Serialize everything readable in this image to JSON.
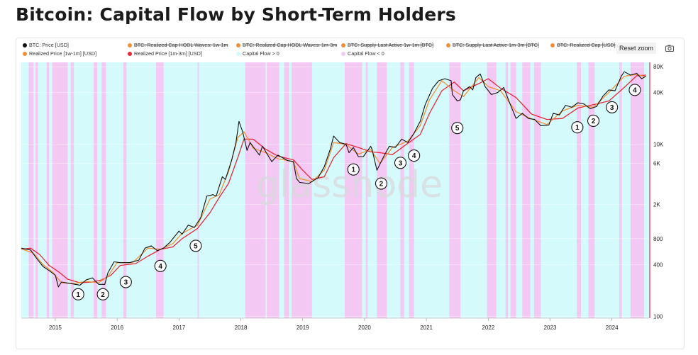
{
  "title": "Bitcoin: Capital Flow by Short-Term Holders",
  "toolbar": {
    "reset_label": "Reset zoom",
    "camera_icon": "camera-icon"
  },
  "watermark": "glassnode",
  "legend": [
    {
      "label": "BTC: Price [USD]",
      "color": "#111111",
      "active": true
    },
    {
      "label": "BTC: Realized Cap HODL Waves: 1w-1m",
      "color": "#f0913a",
      "active": false
    },
    {
      "label": "BTC: Realized Cap HODL Waves: 1m-3m",
      "color": "#f0913a",
      "active": false
    },
    {
      "label": "BTC: Supply Last Active 1w-1m [BTC]",
      "color": "#f0913a",
      "active": false
    },
    {
      "label": "BTC: Supply Last Active 1m-3m [BTC]",
      "color": "#f0913a",
      "active": false
    },
    {
      "label": "BTC: Realized Cap [USD]",
      "color": "#f0913a",
      "active": false
    },
    {
      "label": "Realized Price [1w-1m] [USD]",
      "color": "#f0913a",
      "active": true
    },
    {
      "label": "Realized Price [1m-3m] [USD]",
      "color": "#e8273a",
      "active": true
    },
    {
      "label": "Capital Flow > 0",
      "color": "#d5fafc",
      "active": true
    },
    {
      "label": "Capital Flow < 0",
      "color": "#f3c8f3",
      "active": true
    }
  ],
  "chart_data": {
    "type": "line",
    "title": "Bitcoin: Capital Flow by Short-Term Holders",
    "x_axis": {
      "ticks": [
        "2015",
        "2016",
        "2017",
        "2018",
        "2019",
        "2020",
        "2021",
        "2022",
        "2023",
        "2024"
      ],
      "range": [
        2014.45,
        2024.6
      ]
    },
    "y_axis": {
      "scale": "log",
      "ticks": [
        {
          "value": 100,
          "label": "100"
        },
        {
          "value": 400,
          "label": "400"
        },
        {
          "value": 800,
          "label": "800"
        },
        {
          "value": 2000,
          "label": "2K"
        },
        {
          "value": 6000,
          "label": "6K"
        },
        {
          "value": 10000,
          "label": "10K"
        },
        {
          "value": 40000,
          "label": "40K"
        },
        {
          "value": 80000,
          "label": "80K"
        }
      ],
      "range": [
        95,
        90000
      ]
    },
    "grid": true,
    "series": [
      {
        "name": "BTC: Price [USD]",
        "color": "#111111",
        "points": [
          [
            2014.45,
            620
          ],
          [
            2014.6,
            590
          ],
          [
            2014.7,
            470
          ],
          [
            2014.8,
            380
          ],
          [
            2014.9,
            340
          ],
          [
            2015.0,
            300
          ],
          [
            2015.05,
            220
          ],
          [
            2015.1,
            250
          ],
          [
            2015.25,
            240
          ],
          [
            2015.4,
            230
          ],
          [
            2015.5,
            265
          ],
          [
            2015.6,
            280
          ],
          [
            2015.7,
            235
          ],
          [
            2015.8,
            235
          ],
          [
            2015.85,
            320
          ],
          [
            2015.95,
            430
          ],
          [
            2016.05,
            420
          ],
          [
            2016.2,
            420
          ],
          [
            2016.35,
            450
          ],
          [
            2016.45,
            620
          ],
          [
            2016.55,
            660
          ],
          [
            2016.65,
            580
          ],
          [
            2016.75,
            620
          ],
          [
            2016.85,
            720
          ],
          [
            2017.0,
            980
          ],
          [
            2017.05,
            900
          ],
          [
            2017.15,
            1150
          ],
          [
            2017.25,
            1080
          ],
          [
            2017.35,
            1400
          ],
          [
            2017.45,
            2500
          ],
          [
            2017.55,
            2600
          ],
          [
            2017.6,
            2500
          ],
          [
            2017.7,
            4200
          ],
          [
            2017.75,
            3900
          ],
          [
            2017.85,
            6500
          ],
          [
            2017.92,
            10500
          ],
          [
            2017.97,
            18500
          ],
          [
            2018.03,
            14000
          ],
          [
            2018.1,
            8500
          ],
          [
            2018.15,
            10500
          ],
          [
            2018.3,
            7500
          ],
          [
            2018.35,
            9500
          ],
          [
            2018.5,
            6300
          ],
          [
            2018.6,
            7500
          ],
          [
            2018.75,
            6500
          ],
          [
            2018.85,
            6300
          ],
          [
            2018.9,
            4000
          ],
          [
            2018.95,
            3600
          ],
          [
            2019.1,
            3500
          ],
          [
            2019.25,
            4100
          ],
          [
            2019.35,
            5500
          ],
          [
            2019.45,
            9000
          ],
          [
            2019.5,
            12500
          ],
          [
            2019.6,
            10500
          ],
          [
            2019.7,
            10000
          ],
          [
            2019.75,
            8000
          ],
          [
            2019.82,
            9200
          ],
          [
            2019.9,
            7200
          ],
          [
            2019.98,
            7200
          ],
          [
            2020.1,
            9500
          ],
          [
            2020.12,
            8800
          ],
          [
            2020.2,
            5000
          ],
          [
            2020.3,
            7000
          ],
          [
            2020.4,
            9500
          ],
          [
            2020.5,
            9200
          ],
          [
            2020.6,
            11500
          ],
          [
            2020.7,
            10500
          ],
          [
            2020.8,
            13500
          ],
          [
            2020.9,
            18500
          ],
          [
            2020.98,
            29000
          ],
          [
            2021.1,
            45000
          ],
          [
            2021.2,
            55000
          ],
          [
            2021.3,
            58000
          ],
          [
            2021.4,
            55000
          ],
          [
            2021.42,
            38000
          ],
          [
            2021.5,
            32000
          ],
          [
            2021.55,
            33000
          ],
          [
            2021.6,
            42000
          ],
          [
            2021.7,
            47000
          ],
          [
            2021.75,
            43000
          ],
          [
            2021.8,
            60000
          ],
          [
            2021.87,
            66000
          ],
          [
            2021.95,
            47000
          ],
          [
            2022.05,
            38000
          ],
          [
            2022.15,
            40000
          ],
          [
            2022.25,
            46000
          ],
          [
            2022.35,
            30000
          ],
          [
            2022.45,
            20000
          ],
          [
            2022.55,
            23000
          ],
          [
            2022.65,
            20000
          ],
          [
            2022.75,
            19500
          ],
          [
            2022.85,
            16500
          ],
          [
            2022.98,
            16800
          ],
          [
            2023.05,
            23000
          ],
          [
            2023.15,
            22000
          ],
          [
            2023.25,
            28500
          ],
          [
            2023.35,
            27000
          ],
          [
            2023.45,
            30500
          ],
          [
            2023.55,
            29500
          ],
          [
            2023.65,
            26000
          ],
          [
            2023.75,
            27500
          ],
          [
            2023.85,
            36000
          ],
          [
            2023.95,
            43000
          ],
          [
            2024.05,
            42000
          ],
          [
            2024.15,
            62000
          ],
          [
            2024.2,
            70000
          ],
          [
            2024.3,
            64000
          ],
          [
            2024.4,
            67000
          ],
          [
            2024.48,
            58000
          ],
          [
            2024.55,
            62000
          ]
        ]
      },
      {
        "name": "Realized Price [1w-1m] [USD]",
        "color": "#f0913a",
        "points": [
          [
            2014.45,
            610
          ],
          [
            2014.65,
            540
          ],
          [
            2014.8,
            400
          ],
          [
            2014.95,
            330
          ],
          [
            2015.1,
            245
          ],
          [
            2015.3,
            240
          ],
          [
            2015.5,
            255
          ],
          [
            2015.7,
            245
          ],
          [
            2015.85,
            290
          ],
          [
            2016.0,
            420
          ],
          [
            2016.25,
            420
          ],
          [
            2016.5,
            620
          ],
          [
            2016.7,
            600
          ],
          [
            2016.9,
            700
          ],
          [
            2017.05,
            920
          ],
          [
            2017.3,
            1150
          ],
          [
            2017.5,
            2300
          ],
          [
            2017.65,
            2600
          ],
          [
            2017.8,
            4800
          ],
          [
            2017.95,
            12000
          ],
          [
            2018.05,
            14000
          ],
          [
            2018.2,
            9000
          ],
          [
            2018.4,
            8000
          ],
          [
            2018.6,
            6800
          ],
          [
            2018.85,
            6300
          ],
          [
            2018.95,
            4000
          ],
          [
            2019.15,
            3700
          ],
          [
            2019.35,
            5000
          ],
          [
            2019.5,
            10500
          ],
          [
            2019.7,
            10000
          ],
          [
            2019.9,
            7700
          ],
          [
            2020.1,
            8700
          ],
          [
            2020.25,
            6000
          ],
          [
            2020.45,
            9200
          ],
          [
            2020.7,
            10900
          ],
          [
            2020.9,
            16500
          ],
          [
            2021.05,
            33000
          ],
          [
            2021.25,
            55000
          ],
          [
            2021.45,
            42000
          ],
          [
            2021.6,
            36000
          ],
          [
            2021.85,
            60000
          ],
          [
            2022.0,
            47000
          ],
          [
            2022.2,
            42000
          ],
          [
            2022.45,
            24000
          ],
          [
            2022.7,
            19800
          ],
          [
            2022.95,
            17000
          ],
          [
            2023.2,
            24500
          ],
          [
            2023.45,
            28500
          ],
          [
            2023.7,
            27000
          ],
          [
            2023.95,
            40000
          ],
          [
            2024.2,
            62000
          ],
          [
            2024.4,
            65000
          ],
          [
            2024.55,
            61000
          ]
        ]
      },
      {
        "name": "Realized Price [1m-3m] [USD]",
        "color": "#e8273a",
        "points": [
          [
            2014.45,
            600
          ],
          [
            2014.6,
            620
          ],
          [
            2014.75,
            520
          ],
          [
            2014.9,
            390
          ],
          [
            2015.05,
            330
          ],
          [
            2015.2,
            270
          ],
          [
            2015.4,
            245
          ],
          [
            2015.6,
            250
          ],
          [
            2015.75,
            265
          ],
          [
            2015.9,
            300
          ],
          [
            2016.05,
            390
          ],
          [
            2016.3,
            410
          ],
          [
            2016.5,
            500
          ],
          [
            2016.7,
            600
          ],
          [
            2016.9,
            640
          ],
          [
            2017.05,
            800
          ],
          [
            2017.3,
            1050
          ],
          [
            2017.5,
            1600
          ],
          [
            2017.65,
            2400
          ],
          [
            2017.8,
            3500
          ],
          [
            2017.95,
            7000
          ],
          [
            2018.05,
            11500
          ],
          [
            2018.2,
            11500
          ],
          [
            2018.4,
            8800
          ],
          [
            2018.6,
            7300
          ],
          [
            2018.85,
            6600
          ],
          [
            2019.0,
            5000
          ],
          [
            2019.15,
            3900
          ],
          [
            2019.35,
            4200
          ],
          [
            2019.5,
            7000
          ],
          [
            2019.7,
            10200
          ],
          [
            2019.9,
            9200
          ],
          [
            2020.1,
            8200
          ],
          [
            2020.25,
            8000
          ],
          [
            2020.45,
            7600
          ],
          [
            2020.7,
            10300
          ],
          [
            2020.9,
            13000
          ],
          [
            2021.05,
            23000
          ],
          [
            2021.25,
            42000
          ],
          [
            2021.45,
            53000
          ],
          [
            2021.6,
            42000
          ],
          [
            2021.85,
            51000
          ],
          [
            2022.0,
            58000
          ],
          [
            2022.2,
            45000
          ],
          [
            2022.45,
            35000
          ],
          [
            2022.7,
            22500
          ],
          [
            2022.95,
            19500
          ],
          [
            2023.2,
            20000
          ],
          [
            2023.45,
            26500
          ],
          [
            2023.7,
            29000
          ],
          [
            2023.95,
            32000
          ],
          [
            2024.2,
            46000
          ],
          [
            2024.4,
            63000
          ],
          [
            2024.55,
            64000
          ]
        ]
      }
    ],
    "capital_flow_negative_periods": [
      [
        2014.57,
        2014.65
      ],
      [
        2014.68,
        2014.72
      ],
      [
        2014.86,
        2014.9
      ],
      [
        2014.95,
        2015.2
      ],
      [
        2015.25,
        2015.3
      ],
      [
        2015.62,
        2015.68
      ],
      [
        2015.75,
        2015.82
      ],
      [
        2016.1,
        2016.15
      ],
      [
        2016.63,
        2016.75
      ],
      [
        2017.3,
        2017.32
      ],
      [
        2018.07,
        2018.4
      ],
      [
        2018.42,
        2018.62
      ],
      [
        2018.7,
        2018.78
      ],
      [
        2018.82,
        2019.15
      ],
      [
        2019.68,
        2019.96
      ],
      [
        2020.02,
        2020.05
      ],
      [
        2020.2,
        2020.36
      ],
      [
        2020.58,
        2020.64
      ],
      [
        2020.72,
        2020.8
      ],
      [
        2021.37,
        2021.55
      ],
      [
        2021.98,
        2022.13
      ],
      [
        2022.28,
        2022.32
      ],
      [
        2022.36,
        2022.45
      ],
      [
        2022.55,
        2022.68
      ],
      [
        2022.74,
        2022.85
      ],
      [
        2023.43,
        2023.5
      ],
      [
        2023.62,
        2023.72
      ],
      [
        2024.12,
        2024.16
      ],
      [
        2024.3,
        2024.52
      ]
    ],
    "annotations": [
      {
        "label": "1",
        "x": 2015.37,
        "y": 180
      },
      {
        "label": "2",
        "x": 2015.77,
        "y": 180
      },
      {
        "label": "3",
        "x": 2016.14,
        "y": 250
      },
      {
        "label": "4",
        "x": 2016.7,
        "y": 385
      },
      {
        "label": "5",
        "x": 2017.27,
        "y": 660
      },
      {
        "label": "1",
        "x": 2019.82,
        "y": 5100
      },
      {
        "label": "2",
        "x": 2020.27,
        "y": 3500
      },
      {
        "label": "3",
        "x": 2020.58,
        "y": 6100
      },
      {
        "label": "4",
        "x": 2020.8,
        "y": 7400
      },
      {
        "label": "5",
        "x": 2021.5,
        "y": 15500
      },
      {
        "label": "1",
        "x": 2023.44,
        "y": 15800
      },
      {
        "label": "2",
        "x": 2023.7,
        "y": 18800
      },
      {
        "label": "3",
        "x": 2024.0,
        "y": 27000
      },
      {
        "label": "4",
        "x": 2024.37,
        "y": 43000
      }
    ]
  }
}
